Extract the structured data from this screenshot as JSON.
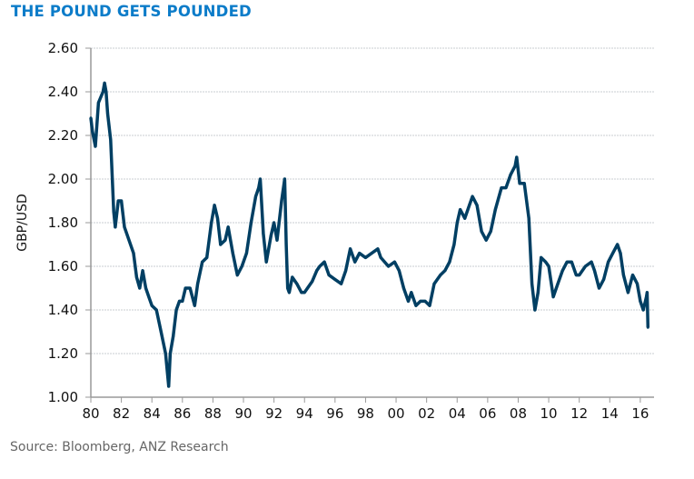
{
  "title": "THE POUND GETS POUNDED",
  "source": "Source: Bloomberg, ANZ Research",
  "chart_data": {
    "type": "line",
    "title": "THE POUND GETS POUNDED",
    "xlabel": "",
    "ylabel": "GBP/USD",
    "ylim": [
      1.0,
      2.6
    ],
    "xlim": [
      1980,
      2016.9
    ],
    "grid": true,
    "line_color": "#003f63",
    "y_ticks": [
      "1.00",
      "1.20",
      "1.40",
      "1.60",
      "1.80",
      "2.00",
      "2.20",
      "2.40",
      "2.60"
    ],
    "x_ticks": [
      "80",
      "82",
      "84",
      "86",
      "88",
      "90",
      "92",
      "94",
      "96",
      "98",
      "00",
      "02",
      "04",
      "06",
      "08",
      "10",
      "12",
      "14",
      "16"
    ],
    "series": [
      {
        "x": [
          1980.0,
          1980.1,
          1980.3,
          1980.5,
          1980.8,
          1980.9,
          1981.0,
          1981.1,
          1981.3,
          1981.5,
          1981.6,
          1981.8,
          1982.0,
          1982.2,
          1982.5,
          1982.8,
          1983.0,
          1983.2,
          1983.4,
          1983.6,
          1983.8,
          1984.0,
          1984.3,
          1984.6,
          1984.9,
          1985.1,
          1985.2,
          1985.4,
          1985.6,
          1985.8,
          1986.0,
          1986.2,
          1986.5,
          1986.8,
          1987.0,
          1987.3,
          1987.6,
          1987.9,
          1988.1,
          1988.3,
          1988.5,
          1988.8,
          1989.0,
          1989.3,
          1989.6,
          1989.9,
          1990.2,
          1990.5,
          1990.8,
          1991.0,
          1991.1,
          1991.3,
          1991.5,
          1991.8,
          1992.0,
          1992.2,
          1992.5,
          1992.7,
          1992.8,
          1992.9,
          1993.0,
          1993.2,
          1993.5,
          1993.8,
          1994.0,
          1994.5,
          1994.8,
          1995.0,
          1995.3,
          1995.6,
          1996.0,
          1996.4,
          1996.7,
          1997.0,
          1997.3,
          1997.6,
          1998.0,
          1998.4,
          1998.8,
          1999.0,
          1999.5,
          1999.9,
          2000.2,
          2000.5,
          2000.8,
          2001.0,
          2001.3,
          2001.6,
          2001.9,
          2002.2,
          2002.5,
          2002.9,
          2003.2,
          2003.5,
          2003.8,
          2004.0,
          2004.2,
          2004.5,
          2004.8,
          2005.0,
          2005.3,
          2005.6,
          2005.9,
          2006.2,
          2006.5,
          2006.9,
          2007.2,
          2007.5,
          2007.8,
          2007.9,
          2008.1,
          2008.4,
          2008.7,
          2008.9,
          2009.1,
          2009.3,
          2009.5,
          2009.8,
          2010.0,
          2010.3,
          2010.6,
          2010.9,
          2011.2,
          2011.5,
          2011.8,
          2012.0,
          2012.4,
          2012.8,
          2013.0,
          2013.3,
          2013.6,
          2013.9,
          2014.2,
          2014.5,
          2014.7,
          2014.9,
          2015.2,
          2015.5,
          2015.8,
          2016.0,
          2016.2,
          2016.4,
          2016.45,
          2016.5
        ],
        "y": [
          2.28,
          2.22,
          2.15,
          2.35,
          2.4,
          2.44,
          2.4,
          2.3,
          2.18,
          1.85,
          1.78,
          1.9,
          1.9,
          1.78,
          1.72,
          1.66,
          1.55,
          1.5,
          1.58,
          1.5,
          1.46,
          1.42,
          1.4,
          1.3,
          1.2,
          1.05,
          1.2,
          1.28,
          1.4,
          1.44,
          1.44,
          1.5,
          1.5,
          1.42,
          1.52,
          1.62,
          1.64,
          1.8,
          1.88,
          1.82,
          1.7,
          1.72,
          1.78,
          1.66,
          1.56,
          1.6,
          1.66,
          1.8,
          1.92,
          1.96,
          2.0,
          1.75,
          1.62,
          1.74,
          1.8,
          1.72,
          1.9,
          2.0,
          1.7,
          1.5,
          1.48,
          1.55,
          1.52,
          1.48,
          1.48,
          1.53,
          1.58,
          1.6,
          1.62,
          1.56,
          1.54,
          1.52,
          1.58,
          1.68,
          1.62,
          1.66,
          1.64,
          1.66,
          1.68,
          1.64,
          1.6,
          1.62,
          1.58,
          1.5,
          1.44,
          1.48,
          1.42,
          1.44,
          1.44,
          1.42,
          1.52,
          1.56,
          1.58,
          1.62,
          1.7,
          1.8,
          1.86,
          1.82,
          1.88,
          1.92,
          1.88,
          1.76,
          1.72,
          1.76,
          1.86,
          1.96,
          1.96,
          2.02,
          2.06,
          2.1,
          1.98,
          1.98,
          1.82,
          1.52,
          1.4,
          1.48,
          1.64,
          1.62,
          1.6,
          1.46,
          1.52,
          1.58,
          1.62,
          1.62,
          1.56,
          1.56,
          1.6,
          1.62,
          1.58,
          1.5,
          1.54,
          1.62,
          1.66,
          1.7,
          1.66,
          1.56,
          1.48,
          1.56,
          1.52,
          1.44,
          1.4,
          1.46,
          1.48,
          1.32
        ]
      }
    ]
  }
}
